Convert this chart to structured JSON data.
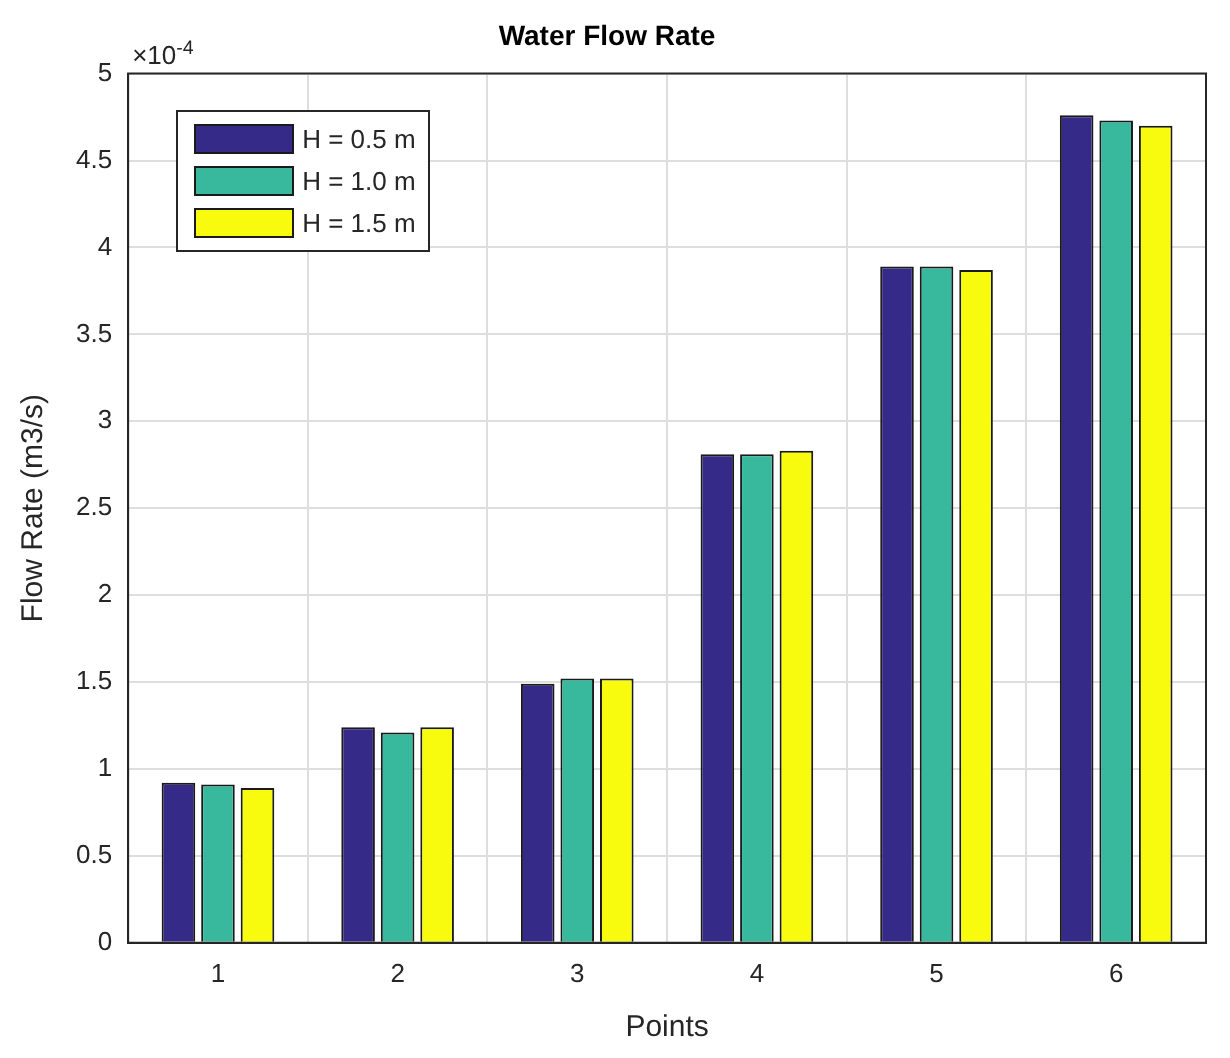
{
  "chart_data": {
    "type": "bar",
    "title": "Water Flow Rate",
    "xlabel": "Points",
    "ylabel": "Flow Rate (m3/s)",
    "annotations": [
      "×10$^{-4}$"
    ],
    "categories": [
      "1",
      "2",
      "3",
      "4",
      "5",
      "6"
    ],
    "series": [
      {
        "name": "H = 0.5 m",
        "color": "#352a87",
        "values": [
          0.92,
          1.24,
          1.49,
          2.81,
          3.89,
          4.76
        ]
      },
      {
        "name": "H = 1.0 m",
        "color": "#38b99e",
        "values": [
          0.91,
          1.21,
          1.52,
          2.81,
          3.89,
          4.73
        ]
      },
      {
        "name": "H = 1.5 m",
        "color": "#f9fb0e",
        "values": [
          0.89,
          1.24,
          1.52,
          2.83,
          3.87,
          4.7
        ]
      }
    ],
    "ylim": [
      0,
      5
    ],
    "yticks": [
      0,
      0.5,
      1,
      1.5,
      2,
      2.5,
      3,
      3.5,
      4,
      4.5,
      5
    ],
    "grid": true,
    "legend": "top left"
  }
}
